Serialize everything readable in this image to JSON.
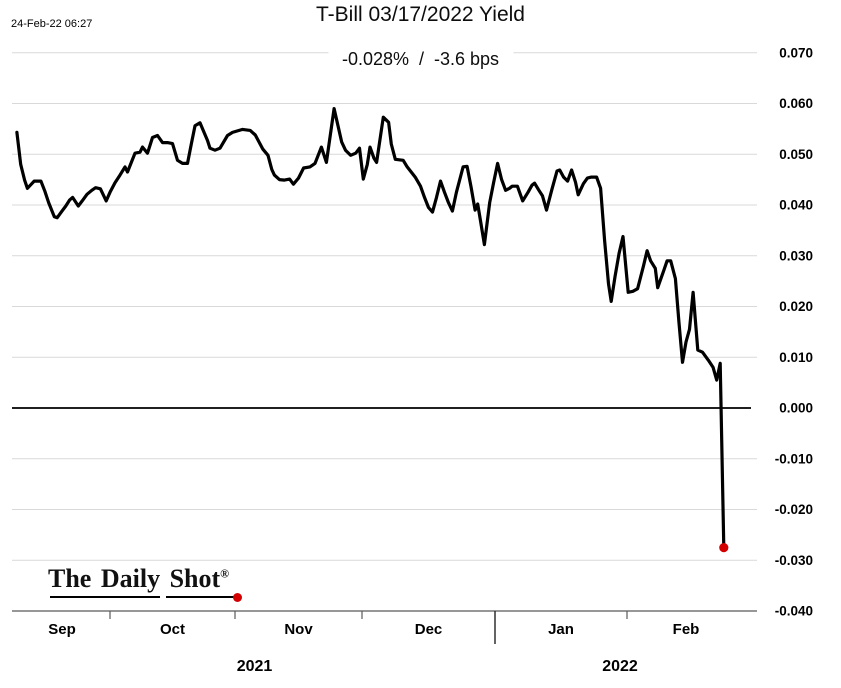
{
  "header": {
    "timestamp": "24-Feb-22 06:27",
    "title": "T-Bill 03/17/2022 Yield",
    "subtitle": "-0.028%  /  -3.6 bps"
  },
  "logo": {
    "text": "The Daily Shot",
    "reg": "®"
  },
  "chart_data": {
    "type": "line",
    "title": "T-Bill 03/17/2022 Yield",
    "subtitle": "-0.028% / -3.6 bps",
    "as_of": "24-Feb-22 06:27",
    "x_unit": "months since 2021-09-01 (fractional; 0=Sep 2021 ... 5=Feb 2022)",
    "x_axis": {
      "months": [
        "Sep",
        "Oct",
        "Nov",
        "Dec",
        "Jan",
        "Feb"
      ],
      "years": [
        "2021",
        "2022"
      ]
    },
    "y_ticks": [
      "0.070",
      "0.060",
      "0.050",
      "0.040",
      "0.030",
      "0.020",
      "0.010",
      "0.000",
      "-0.010",
      "-0.020",
      "-0.030",
      "-0.040"
    ],
    "ylim": [
      -0.04,
      0.07
    ],
    "grid": true,
    "legend": false,
    "line_color": "#000000",
    "grid_color": "#d9d9d9",
    "zero_line_color": "#000000",
    "axis_color": "#595959",
    "marker_color": "#d40000",
    "last_value_pct": -0.028,
    "last_change_bps": -3.6,
    "series": [
      {
        "name": "T-Bill 03/17/2022 Yield (%)",
        "points": [
          [
            0.03,
            0.0543
          ],
          [
            0.07,
            0.048
          ],
          [
            0.11,
            0.0449
          ],
          [
            0.14,
            0.0433
          ],
          [
            0.18,
            0.0441
          ],
          [
            0.21,
            0.0447
          ],
          [
            0.28,
            0.0447
          ],
          [
            0.32,
            0.0428
          ],
          [
            0.36,
            0.0405
          ],
          [
            0.42,
            0.0377
          ],
          [
            0.45,
            0.0375
          ],
          [
            0.5,
            0.0388
          ],
          [
            0.54,
            0.0398
          ],
          [
            0.58,
            0.041
          ],
          [
            0.61,
            0.0415
          ],
          [
            0.67,
            0.0398
          ],
          [
            0.71,
            0.0408
          ],
          [
            0.76,
            0.0421
          ],
          [
            0.81,
            0.0429
          ],
          [
            0.85,
            0.0434
          ],
          [
            0.9,
            0.0432
          ],
          [
            0.96,
            0.0408
          ],
          [
            1.0,
            0.0425
          ],
          [
            1.04,
            0.0444
          ],
          [
            1.08,
            0.0459
          ],
          [
            1.12,
            0.0475
          ],
          [
            1.14,
            0.0465
          ],
          [
            1.2,
            0.0502
          ],
          [
            1.24,
            0.0504
          ],
          [
            1.26,
            0.0514
          ],
          [
            1.3,
            0.0502
          ],
          [
            1.34,
            0.0533
          ],
          [
            1.38,
            0.0537
          ],
          [
            1.42,
            0.0523
          ],
          [
            1.46,
            0.0523
          ],
          [
            1.5,
            0.0521
          ],
          [
            1.54,
            0.0488
          ],
          [
            1.58,
            0.0482
          ],
          [
            1.62,
            0.0482
          ],
          [
            1.65,
            0.052
          ],
          [
            1.68,
            0.0556
          ],
          [
            1.72,
            0.0562
          ],
          [
            1.78,
            0.0527
          ],
          [
            1.8,
            0.0512
          ],
          [
            1.84,
            0.0508
          ],
          [
            1.88,
            0.0512
          ],
          [
            1.94,
            0.0537
          ],
          [
            1.98,
            0.0543
          ],
          [
            2.02,
            0.0546
          ],
          [
            2.06,
            0.0549
          ],
          [
            2.09,
            0.0548
          ],
          [
            2.12,
            0.0547
          ],
          [
            2.16,
            0.0538
          ],
          [
            2.19,
            0.0524
          ],
          [
            2.22,
            0.051
          ],
          [
            2.26,
            0.0498
          ],
          [
            2.29,
            0.047
          ],
          [
            2.31,
            0.0459
          ],
          [
            2.35,
            0.045
          ],
          [
            2.39,
            0.0449
          ],
          [
            2.43,
            0.0451
          ],
          [
            2.46,
            0.0441
          ],
          [
            2.5,
            0.0453
          ],
          [
            2.54,
            0.0473
          ],
          [
            2.59,
            0.0475
          ],
          [
            2.63,
            0.0482
          ],
          [
            2.68,
            0.0514
          ],
          [
            2.72,
            0.0484
          ],
          [
            2.78,
            0.059
          ],
          [
            2.84,
            0.0524
          ],
          [
            2.87,
            0.0508
          ],
          [
            2.91,
            0.0498
          ],
          [
            2.95,
            0.0502
          ],
          [
            2.98,
            0.0512
          ],
          [
            3.01,
            0.0451
          ],
          [
            3.04,
            0.048
          ],
          [
            3.06,
            0.0514
          ],
          [
            3.09,
            0.0492
          ],
          [
            3.11,
            0.0484
          ],
          [
            3.13,
            0.052
          ],
          [
            3.16,
            0.0573
          ],
          [
            3.2,
            0.0563
          ],
          [
            3.22,
            0.052
          ],
          [
            3.25,
            0.049
          ],
          [
            3.28,
            0.0489
          ],
          [
            3.31,
            0.0488
          ],
          [
            3.34,
            0.0475
          ],
          [
            3.37,
            0.0465
          ],
          [
            3.4,
            0.0455
          ],
          [
            3.44,
            0.0437
          ],
          [
            3.47,
            0.0415
          ],
          [
            3.5,
            0.0395
          ],
          [
            3.53,
            0.0386
          ],
          [
            3.56,
            0.0415
          ],
          [
            3.59,
            0.0447
          ],
          [
            3.62,
            0.0425
          ],
          [
            3.65,
            0.0405
          ],
          [
            3.68,
            0.0388
          ],
          [
            3.71,
            0.0425
          ],
          [
            3.74,
            0.0455
          ],
          [
            3.76,
            0.0475
          ],
          [
            3.79,
            0.0476
          ],
          [
            3.82,
            0.0435
          ],
          [
            3.85,
            0.039
          ],
          [
            3.87,
            0.0402
          ],
          [
            3.89,
            0.037
          ],
          [
            3.92,
            0.0322
          ],
          [
            3.96,
            0.0405
          ],
          [
            3.99,
            0.0445
          ],
          [
            4.02,
            0.0482
          ],
          [
            4.05,
            0.045
          ],
          [
            4.08,
            0.0429
          ],
          [
            4.11,
            0.0433
          ],
          [
            4.13,
            0.0437
          ],
          [
            4.17,
            0.0437
          ],
          [
            4.21,
            0.0408
          ],
          [
            4.25,
            0.0425
          ],
          [
            4.28,
            0.0439
          ],
          [
            4.3,
            0.0443
          ],
          [
            4.33,
            0.043
          ],
          [
            4.36,
            0.0418
          ],
          [
            4.39,
            0.039
          ],
          [
            4.43,
            0.043
          ],
          [
            4.47,
            0.0467
          ],
          [
            4.49,
            0.0469
          ],
          [
            4.52,
            0.0455
          ],
          [
            4.55,
            0.0447
          ],
          [
            4.58,
            0.0469
          ],
          [
            4.61,
            0.0445
          ],
          [
            4.63,
            0.042
          ],
          [
            4.67,
            0.0442
          ],
          [
            4.7,
            0.0453
          ],
          [
            4.73,
            0.0455
          ],
          [
            4.77,
            0.0455
          ],
          [
            4.8,
            0.0433
          ],
          [
            4.83,
            0.033
          ],
          [
            4.86,
            0.0245
          ],
          [
            4.88,
            0.021
          ],
          [
            4.91,
            0.026
          ],
          [
            4.94,
            0.0305
          ],
          [
            4.97,
            0.0338
          ],
          [
            5.01,
            0.0228
          ],
          [
            5.05,
            0.023
          ],
          [
            5.09,
            0.0235
          ],
          [
            5.14,
            0.028
          ],
          [
            5.17,
            0.031
          ],
          [
            5.2,
            0.029
          ],
          [
            5.24,
            0.0275
          ],
          [
            5.26,
            0.0237
          ],
          [
            5.31,
            0.027
          ],
          [
            5.34,
            0.029
          ],
          [
            5.37,
            0.029
          ],
          [
            5.41,
            0.0255
          ],
          [
            5.44,
            0.017
          ],
          [
            5.47,
            0.009
          ],
          [
            5.5,
            0.013
          ],
          [
            5.53,
            0.0155
          ],
          [
            5.56,
            0.0228
          ],
          [
            5.6,
            0.0114
          ],
          [
            5.64,
            0.011
          ],
          [
            5.69,
            0.0094
          ],
          [
            5.73,
            0.008
          ],
          [
            5.76,
            0.0055
          ],
          [
            5.79,
            0.0088
          ],
          [
            5.82,
            -0.0275
          ]
        ]
      }
    ]
  }
}
